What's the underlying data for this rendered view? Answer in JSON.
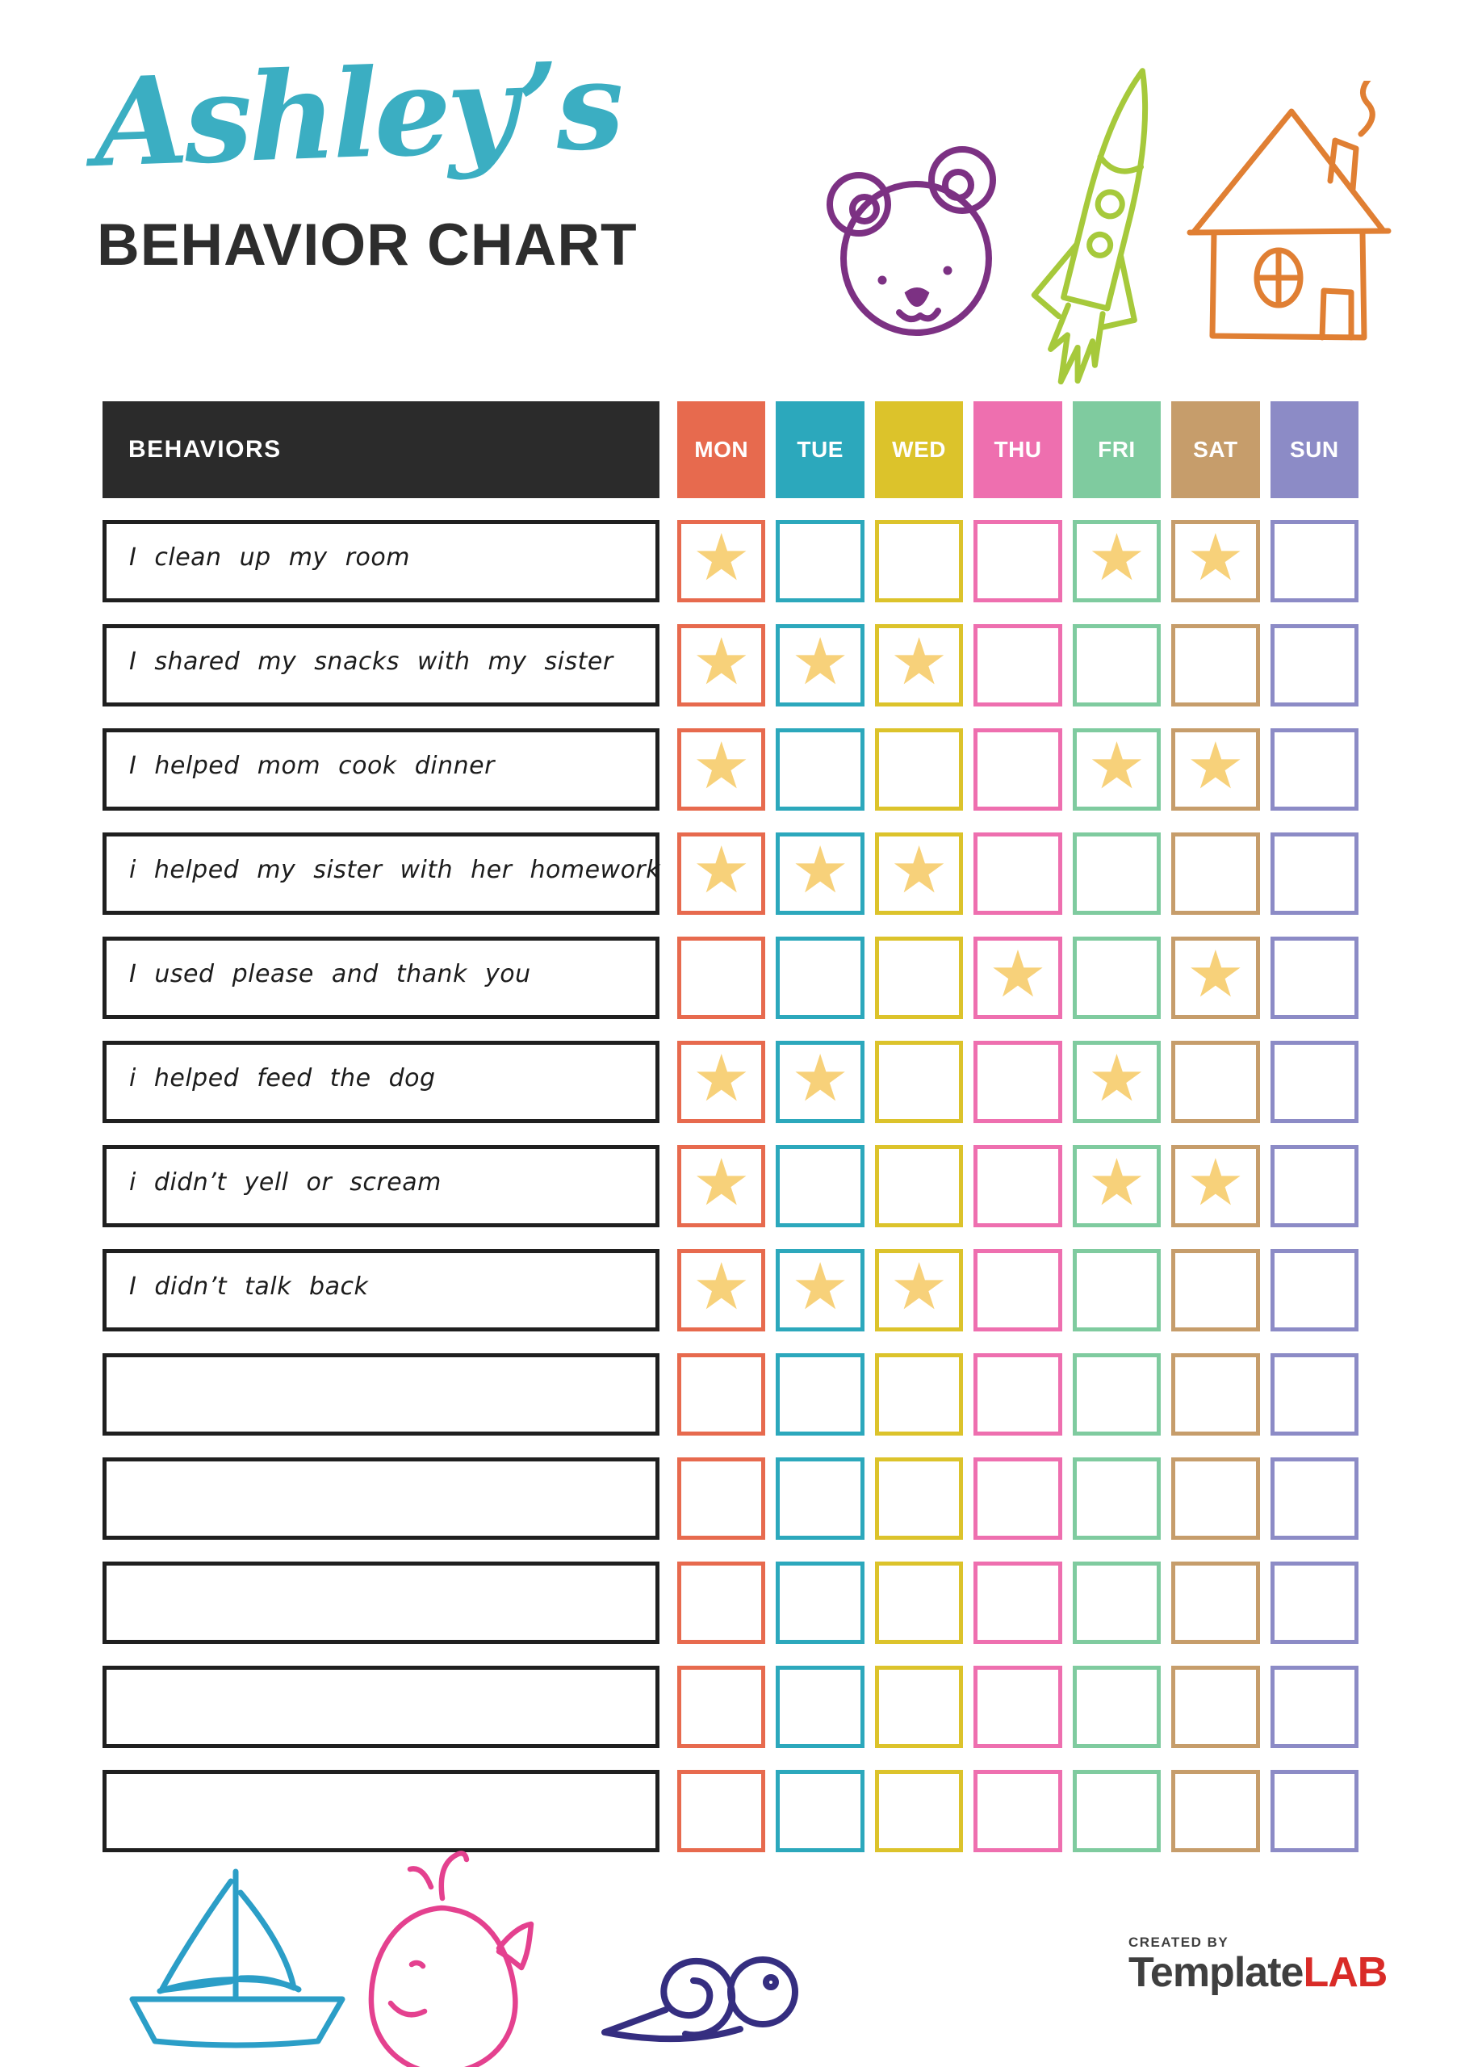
{
  "header": {
    "name": "Ashley’s",
    "title": "BEHAVIOR CHART",
    "name_color": "#3BAEC2",
    "title_color": "#2D2D2D"
  },
  "icons": {
    "header": [
      {
        "name": "bear-icon",
        "color": "#7C3183"
      },
      {
        "name": "rocket-icon",
        "color": "#A6C93B"
      },
      {
        "name": "house-icon",
        "color": "#E07F33"
      }
    ],
    "footer": [
      {
        "name": "sailboat-icon",
        "color": "#2B9EC7"
      },
      {
        "name": "whale-icon",
        "color": "#E4418F"
      },
      {
        "name": "snail-icon",
        "color": "#352E80"
      }
    ]
  },
  "table": {
    "behaviors_header": "BEHAVIORS",
    "header_bg": "#2B2B2B",
    "row_border": "#1F1F1F",
    "star_glyph": "★",
    "star_color": "#F7D17A",
    "days": [
      {
        "label": "MON",
        "color": "#E76A4E"
      },
      {
        "label": "TUE",
        "color": "#2CA8BC"
      },
      {
        "label": "WED",
        "color": "#DCC32B"
      },
      {
        "label": "THU",
        "color": "#EE6FAF"
      },
      {
        "label": "FRI",
        "color": "#7FCB9F"
      },
      {
        "label": "SAT",
        "color": "#C69D6B"
      },
      {
        "label": "SUN",
        "color": "#8C8BC6"
      }
    ],
    "rows": [
      {
        "label": "I clean up my room",
        "stars": [
          "MON",
          "FRI",
          "SAT"
        ]
      },
      {
        "label": "I shared my snacks with my sister",
        "stars": [
          "MON",
          "TUE",
          "WED"
        ]
      },
      {
        "label": "I helped mom cook dinner",
        "stars": [
          "MON",
          "FRI",
          "SAT"
        ]
      },
      {
        "label": "i helped my sister with her homework",
        "stars": [
          "MON",
          "TUE",
          "WED"
        ]
      },
      {
        "label": "I used please and thank you",
        "stars": [
          "THU",
          "SAT"
        ]
      },
      {
        "label": "i helped feed the dog",
        "stars": [
          "MON",
          "TUE",
          "FRI"
        ]
      },
      {
        "label": "i didn’t yell or scream",
        "stars": [
          "MON",
          "FRI",
          "SAT"
        ]
      },
      {
        "label": "I didn’t talk back",
        "stars": [
          "MON",
          "TUE",
          "WED"
        ]
      },
      {
        "label": "",
        "stars": []
      },
      {
        "label": "",
        "stars": []
      },
      {
        "label": "",
        "stars": []
      },
      {
        "label": "",
        "stars": []
      },
      {
        "label": "",
        "stars": []
      }
    ]
  },
  "footer": {
    "created_by": "CREATED BY",
    "brand": "Template",
    "brand_accent": "LAB",
    "brand_color": "#3F3F3F",
    "brand_accent_color": "#D92B27"
  }
}
